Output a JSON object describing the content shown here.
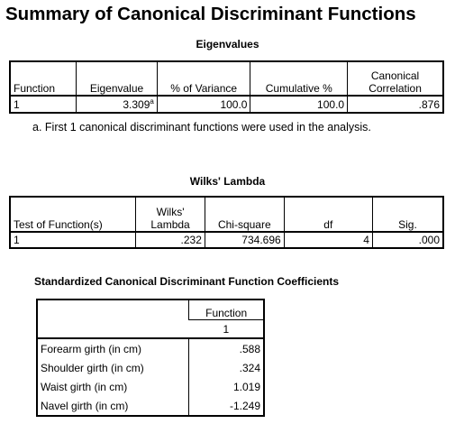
{
  "title": "Summary of Canonical Discriminant Functions",
  "eigenvalues": {
    "title": "Eigenvalues",
    "headers": [
      "Function",
      "Eigenvalue",
      "% of Variance",
      "Cumulative %",
      "Canonical Correlation"
    ],
    "canonical_header_line1": "Canonical",
    "canonical_header_line2": "Correlation",
    "row": {
      "function": "1",
      "eigenvalue": "3.309",
      "eigenvalue_mark": "a",
      "pct_variance": "100.0",
      "cumulative": "100.0",
      "canonical_correlation": ".876"
    },
    "footnote_mark": "a.",
    "footnote": "First 1 canonical discriminant functions were used in the analysis."
  },
  "wilks": {
    "title": "Wilks' Lambda",
    "headers": [
      "Test of Function(s)",
      "Wilks' Lambda",
      "Chi-square",
      "df",
      "Sig."
    ],
    "lambda_line1": "Wilks'",
    "lambda_line2": "Lambda",
    "row": {
      "test": "1",
      "lambda": ".232",
      "chi_square": "734.696",
      "df": "4",
      "sig": ".000"
    }
  },
  "standardized": {
    "title": "Standardized Canonical Discriminant Function Coefficients",
    "function_header": "Function",
    "function_number": "1",
    "rows": [
      {
        "label": "Forearm girth (in cm)",
        "value": ".588"
      },
      {
        "label": "Shoulder girth (in cm)",
        "value": ".324"
      },
      {
        "label": "Waist girth (in cm)",
        "value": "1.019"
      },
      {
        "label": "Navel girth (in cm)",
        "value": "-1.249"
      }
    ]
  }
}
